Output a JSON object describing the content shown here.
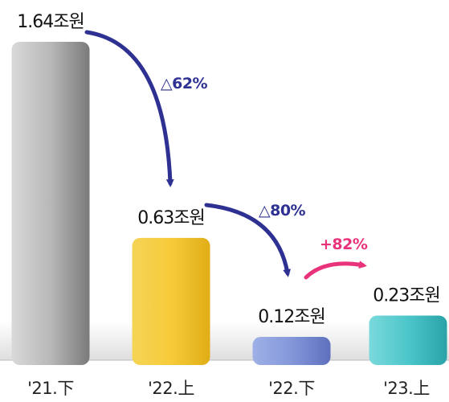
{
  "chart_data": {
    "type": "bar",
    "categories": [
      "'21.下",
      "'22.上",
      "'22.下",
      "'23.上"
    ],
    "values": [
      1.64,
      0.63,
      0.12,
      0.23
    ],
    "value_labels": [
      "1.64조원",
      "0.63조원",
      "0.12조원",
      "0.23조원"
    ],
    "unit": "조원",
    "changes": [
      {
        "from": 0,
        "to": 1,
        "label": "△62%",
        "color": "#2e3192"
      },
      {
        "from": 1,
        "to": 2,
        "label": "△80%",
        "color": "#2e3192"
      },
      {
        "from": 2,
        "to": 3,
        "label": "+82%",
        "color": "#e8337a"
      }
    ],
    "bar_colors": [
      "#8f8f8f",
      "#f2c42c",
      "#7c8fd1",
      "#3cc0c4"
    ],
    "ylim": [
      0,
      1.64
    ],
    "grid": false,
    "title": "",
    "xlabel": "",
    "ylabel": ""
  }
}
